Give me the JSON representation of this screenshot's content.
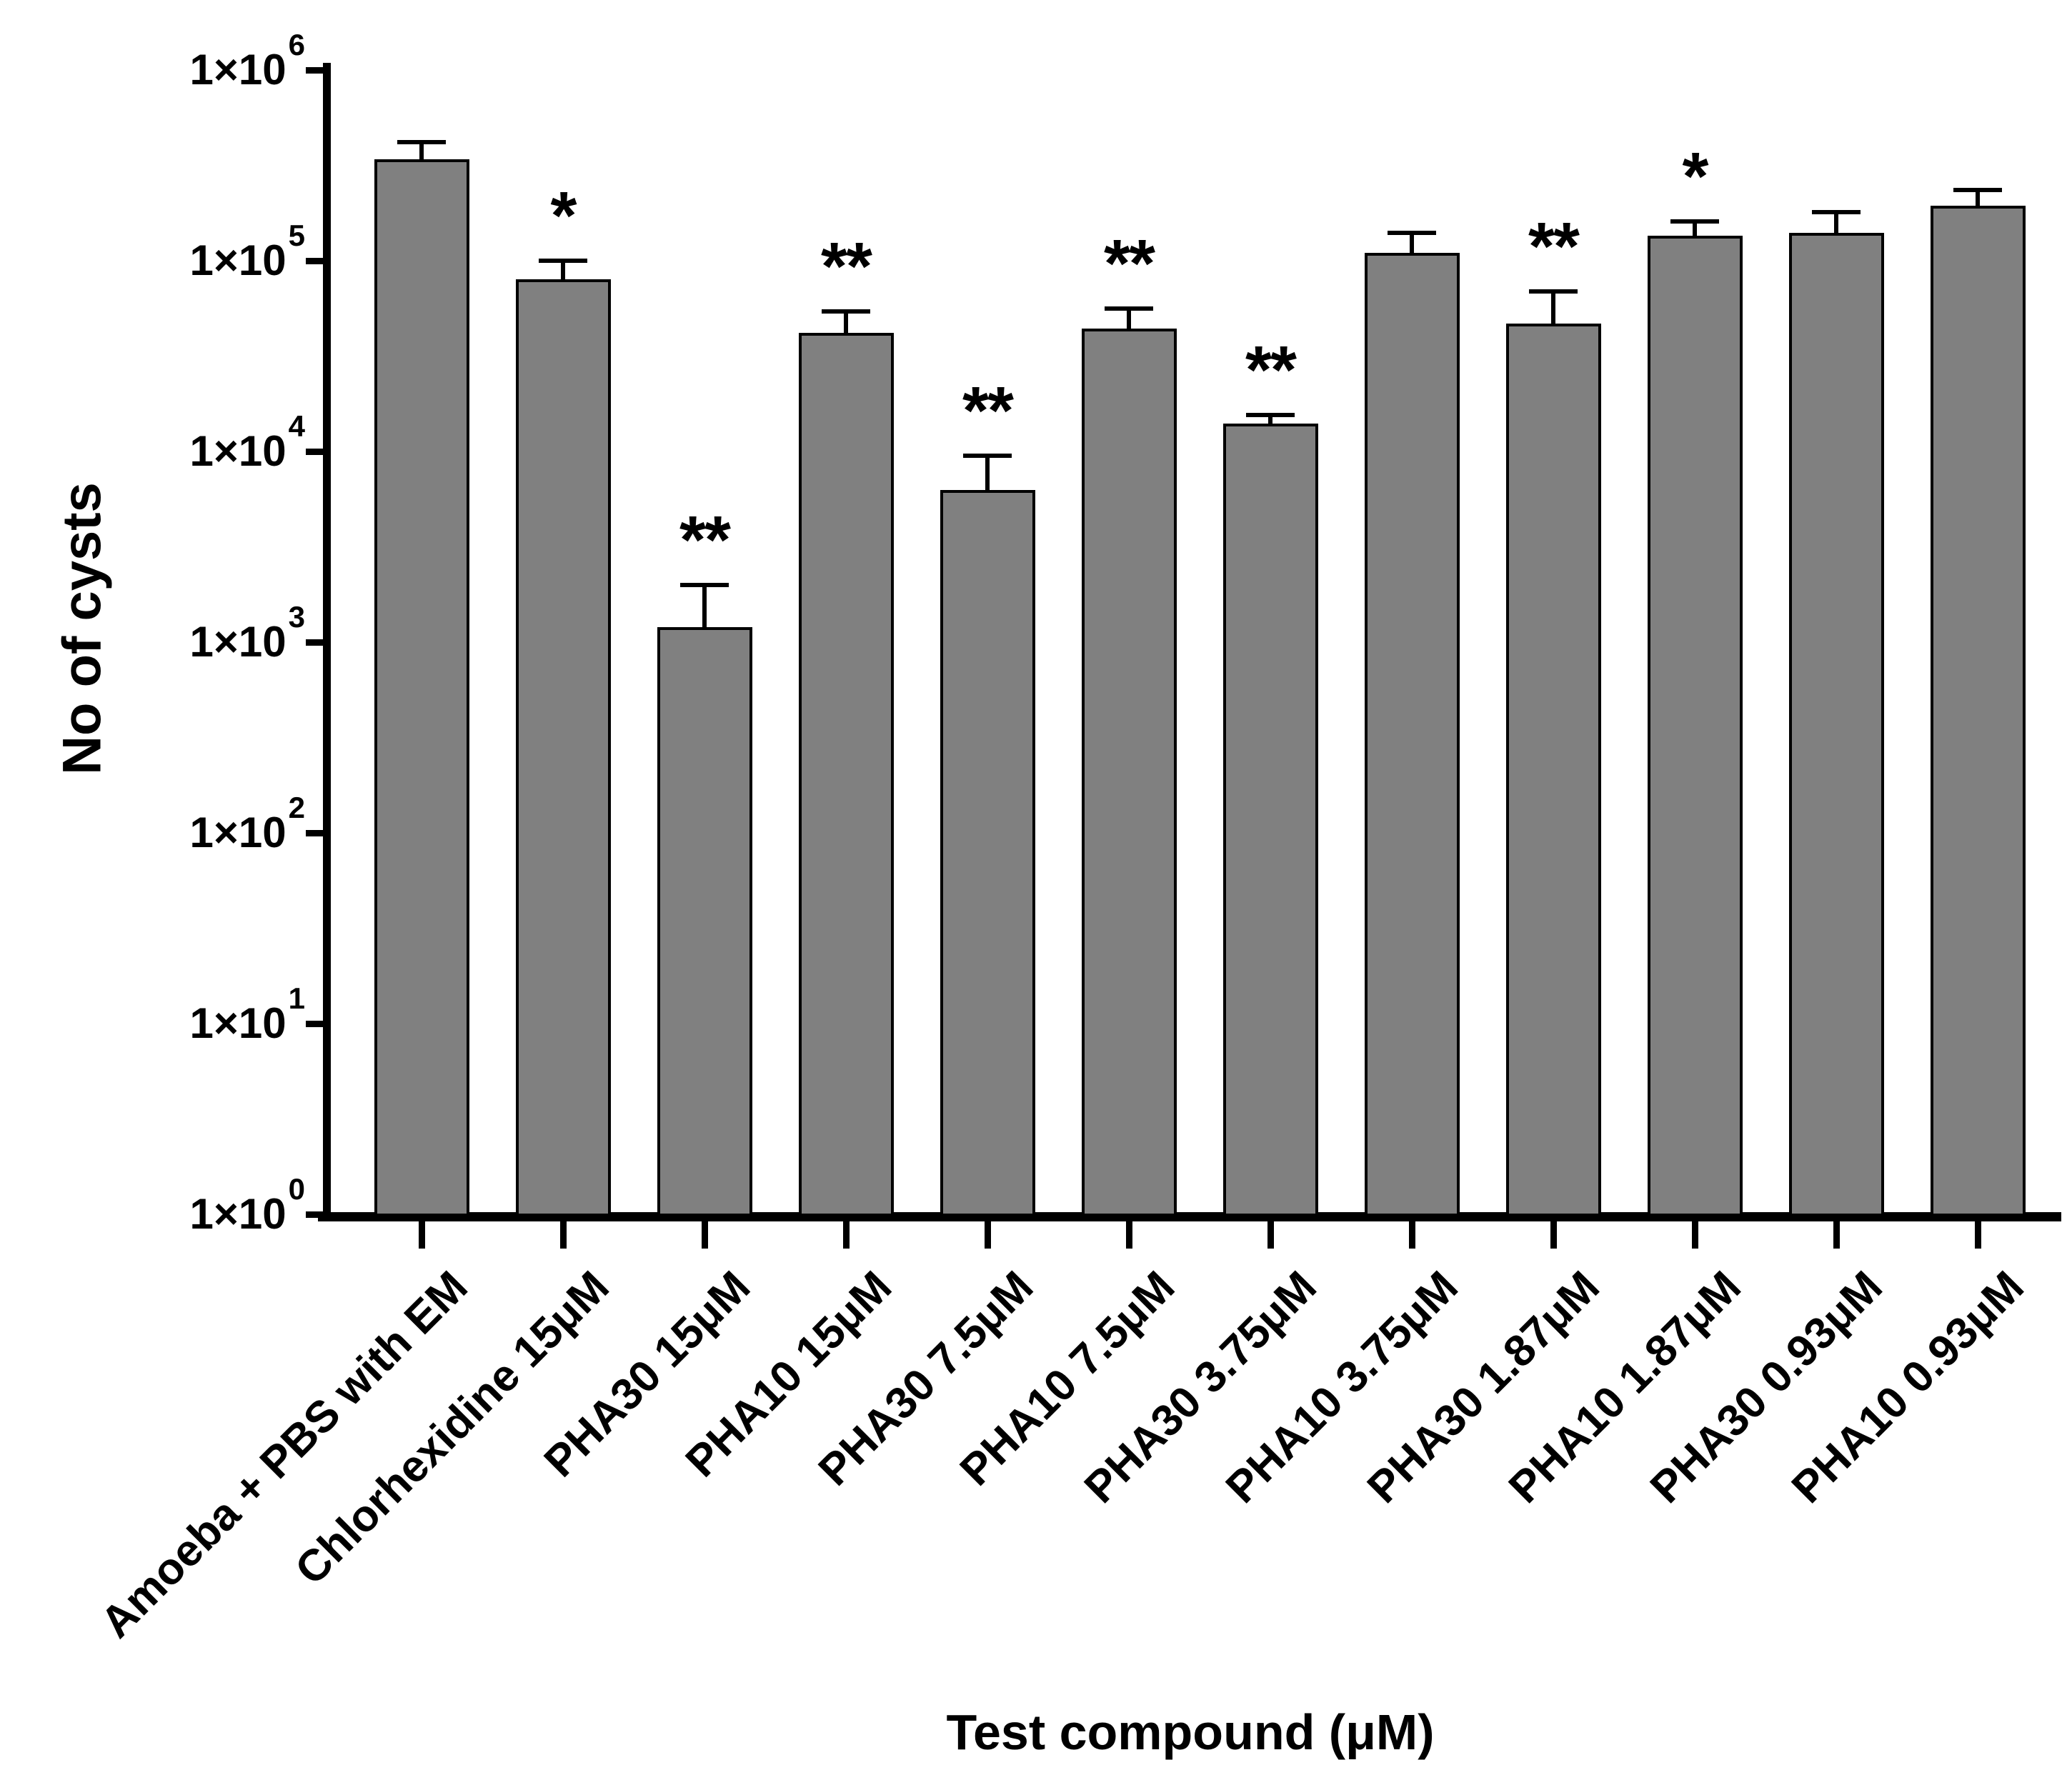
{
  "figure": {
    "background": "#ffffff",
    "text_color": "#000000"
  },
  "chart_data": {
    "type": "bar",
    "title": "",
    "xlabel": "Test compound (μM)",
    "ylabel": "No of cysts",
    "y_scale": "log",
    "ylim": [
      1,
      1000000
    ],
    "grid": false,
    "legend": "none",
    "bar_color": "#808080",
    "bar_border_color": "#000000",
    "error_bar_color": "#000000",
    "y_ticks": [
      {
        "base": "1×10",
        "exp": "6",
        "value": 1000000
      },
      {
        "base": "1×10",
        "exp": "5",
        "value": 100000
      },
      {
        "base": "1×10",
        "exp": "4",
        "value": 10000
      },
      {
        "base": "1×10",
        "exp": "3",
        "value": 1000
      },
      {
        "base": "1×10",
        "exp": "2",
        "value": 100
      },
      {
        "base": "1×10",
        "exp": "1",
        "value": 10
      },
      {
        "base": "1×10",
        "exp": "0",
        "value": 1
      }
    ],
    "categories": [
      "Amoeba + PBS with EM",
      "Chlorhexidine 15μM",
      "PHA30 15μM",
      "PHA10 15μM",
      "PHA30 7.5μM",
      "PHA10 7.5μM",
      "PHA30 3.75μM",
      "PHA10 3.75μM",
      "PHA30 1.87μM",
      "PHA10 1.87μM",
      "PHA30 0.93μM",
      "PHA10 0.93μM"
    ],
    "values": [
      340000,
      80000,
      1200,
      42000,
      6300,
      44000,
      14000,
      110000,
      47000,
      135000,
      140000,
      195000
    ],
    "error_top": [
      420000,
      100000,
      2000,
      54000,
      9500,
      56000,
      15500,
      140000,
      69000,
      160000,
      180000,
      235000
    ],
    "significance": [
      "",
      "*",
      "**",
      "**",
      "**",
      "**",
      "**",
      "",
      "**",
      "*",
      "",
      ""
    ]
  }
}
